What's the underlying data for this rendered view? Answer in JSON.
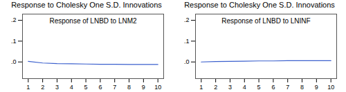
{
  "chart_data": [
    {
      "type": "line",
      "title": "Response to Cholesky One S.D. Innovations",
      "subtitle": "Response of LNBD to LNM2",
      "x": [
        1,
        2,
        3,
        4,
        5,
        6,
        7,
        8,
        9,
        10
      ],
      "values": [
        0.003,
        -0.005,
        -0.008,
        -0.009,
        -0.01,
        -0.011,
        -0.011,
        -0.012,
        -0.012,
        -0.012
      ],
      "color": "#3a5fcd",
      "xlim": [
        0.6,
        10.4
      ],
      "xticks": [
        1,
        2,
        3,
        4,
        5,
        6,
        7,
        8,
        9,
        10
      ],
      "ylim": [
        -0.08,
        0.23
      ],
      "yticks": [
        {
          "value": 0,
          "label": ".0"
        },
        {
          "value": 0.1,
          "label": ".1"
        },
        {
          "value": 0.2,
          "label": ".2"
        }
      ]
    },
    {
      "type": "line",
      "title": "Response to Cholesky One S.D. Innovations",
      "subtitle": "Response of LNBD to LNINF",
      "x": [
        1,
        2,
        3,
        4,
        5,
        6,
        7,
        8,
        9,
        10
      ],
      "values": [
        0.0,
        0.002,
        0.003,
        0.004,
        0.005,
        0.005,
        0.006,
        0.006,
        0.006,
        0.006
      ],
      "color": "#3a5fcd",
      "xlim": [
        0.6,
        10.4
      ],
      "xticks": [
        1,
        2,
        3,
        4,
        5,
        6,
        7,
        8,
        9,
        10
      ],
      "ylim": [
        -0.08,
        0.23
      ],
      "yticks": [
        {
          "value": 0,
          "label": ".0"
        },
        {
          "value": 0.1,
          "label": ".1"
        },
        {
          "value": 0.2,
          "label": ".2"
        }
      ]
    }
  ]
}
